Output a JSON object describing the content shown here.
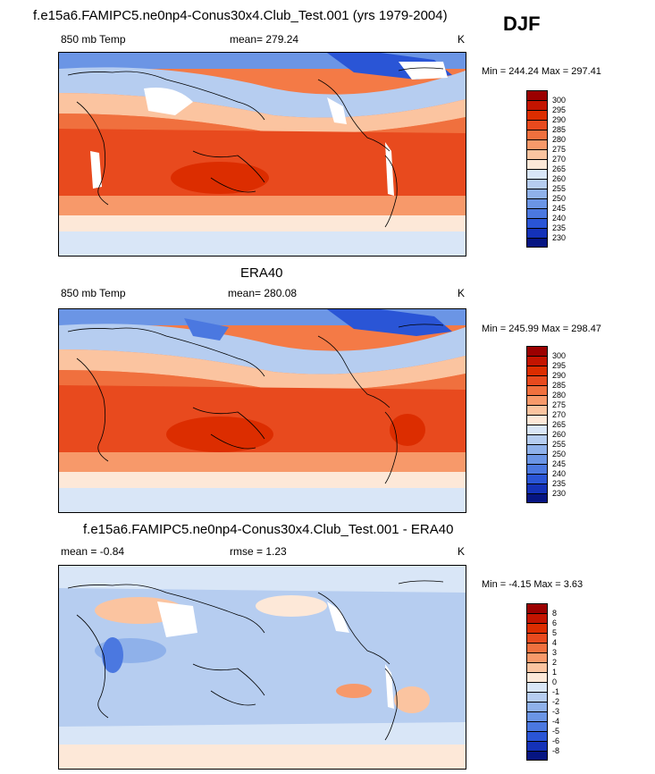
{
  "season": "DJF",
  "panels": [
    {
      "title": "f.e15a6.FAMIPC5.ne0np4-Conus30x4.Club_Test.001 (yrs 1979-2004)",
      "left_label": "850 mb Temp",
      "center_label": "mean= 279.24",
      "units": "K",
      "minmax": "Min = 244.24 Max = 297.41",
      "colorbar": {
        "levels": [
          "300",
          "295",
          "290",
          "285",
          "280",
          "275",
          "270",
          "265",
          "260",
          "255",
          "250",
          "245",
          "240",
          "235",
          "230"
        ],
        "colors": [
          "#9b0000",
          "#c31400",
          "#dc2d00",
          "#e84a1e",
          "#f0703e",
          "#f7996a",
          "#fbc4a0",
          "#fde8d8",
          "#d9e6f7",
          "#b6cdf0",
          "#8fb1ea",
          "#6b95e5",
          "#4b78e0",
          "#2a55d6",
          "#1432b8",
          "#061582"
        ]
      },
      "chart_data": {
        "type": "heatmap",
        "field": "850 mb Temp",
        "units": "K",
        "mean": 279.24,
        "min": 244.24,
        "max": 297.41,
        "contour_levels": [
          230,
          235,
          240,
          245,
          250,
          255,
          260,
          265,
          270,
          275,
          280,
          285,
          290,
          295,
          300
        ],
        "lon_range": [
          0,
          360
        ],
        "lat_range": [
          -90,
          90
        ]
      }
    },
    {
      "title": "ERA40",
      "left_label": "850 mb Temp",
      "center_label": "mean= 280.08",
      "units": "K",
      "minmax": "Min = 245.99 Max = 298.47",
      "colorbar": {
        "levels": [
          "300",
          "295",
          "290",
          "285",
          "280",
          "275",
          "270",
          "265",
          "260",
          "255",
          "250",
          "245",
          "240",
          "235",
          "230"
        ],
        "colors": [
          "#9b0000",
          "#c31400",
          "#dc2d00",
          "#e84a1e",
          "#f0703e",
          "#f7996a",
          "#fbc4a0",
          "#fde8d8",
          "#d9e6f7",
          "#b6cdf0",
          "#8fb1ea",
          "#6b95e5",
          "#4b78e0",
          "#2a55d6",
          "#1432b8",
          "#061582"
        ]
      },
      "chart_data": {
        "type": "heatmap",
        "field": "850 mb Temp",
        "units": "K",
        "mean": 280.08,
        "min": 245.99,
        "max": 298.47,
        "contour_levels": [
          230,
          235,
          240,
          245,
          250,
          255,
          260,
          265,
          270,
          275,
          280,
          285,
          290,
          295,
          300
        ],
        "lon_range": [
          0,
          360
        ],
        "lat_range": [
          -90,
          90
        ]
      }
    },
    {
      "title": "f.e15a6.FAMIPC5.ne0np4-Conus30x4.Club_Test.001 - ERA40",
      "left_label": "mean =  -0.84",
      "center_label": "rmse =   1.23",
      "units": "K",
      "minmax": "Min =  -4.15 Max =   3.63",
      "colorbar": {
        "levels": [
          "8",
          "6",
          "5",
          "4",
          "3",
          "2",
          "1",
          "0",
          "-1",
          "-2",
          "-3",
          "-4",
          "-5",
          "-6",
          "-8"
        ],
        "colors": [
          "#9b0000",
          "#c31400",
          "#dc2d00",
          "#e84a1e",
          "#f0703e",
          "#f7996a",
          "#fbc4a0",
          "#fde8d8",
          "#d9e6f7",
          "#b6cdf0",
          "#8fb1ea",
          "#6b95e5",
          "#4b78e0",
          "#2a55d6",
          "#1432b8",
          "#061582"
        ]
      },
      "chart_data": {
        "type": "heatmap",
        "field": "difference",
        "units": "K",
        "mean": -0.84,
        "rmse": 1.23,
        "min": -4.15,
        "max": 3.63,
        "contour_levels": [
          -8,
          -6,
          -5,
          -4,
          -3,
          -2,
          -1,
          0,
          1,
          2,
          3,
          4,
          5,
          6,
          8
        ],
        "lon_range": [
          0,
          360
        ],
        "lat_range": [
          -90,
          90
        ]
      }
    }
  ],
  "colors": {
    "warm_core": "#e6501e",
    "warm_mid": "#f47a46",
    "warm_light": "#fbc4a0",
    "neutral": "#fde8d8",
    "cool_light": "#d9e6f7",
    "cool_mid": "#8fb1ea",
    "cool_deep": "#4b78e0",
    "missing": "#ffffff",
    "coast": "#000000"
  }
}
